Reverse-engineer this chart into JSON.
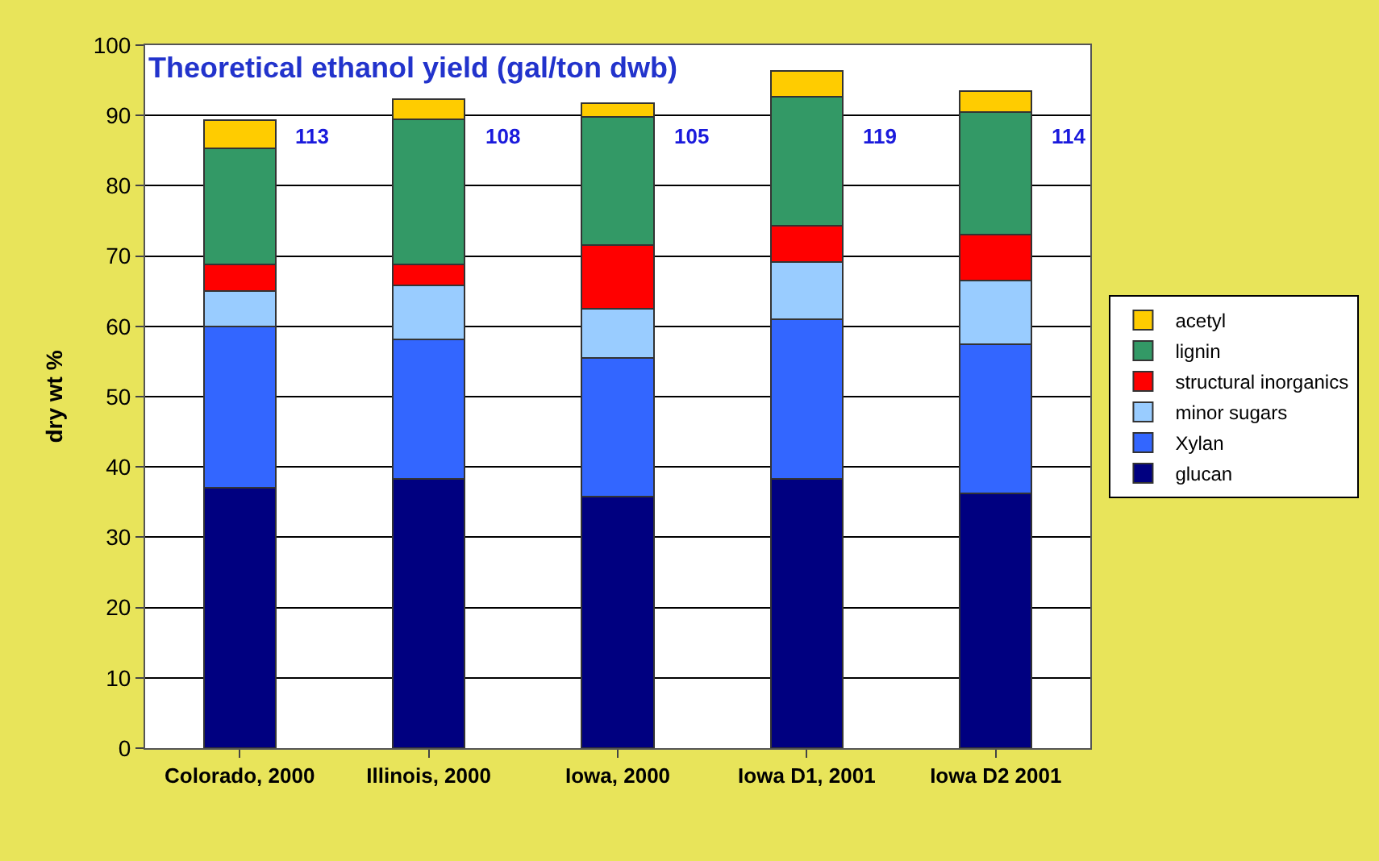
{
  "chart_data": {
    "type": "bar",
    "stacked": true,
    "ylabel": "dry wt %",
    "annotations": [
      {
        "text": "Theoretical ethanol yield (gal/ton dwb)"
      },
      "113",
      "108",
      "105",
      "119",
      "114"
    ],
    "categories": [
      "Colorado, 2000",
      "Illinois, 2000",
      "Iowa, 2000",
      "Iowa D1, 2001",
      "Iowa D2 2001"
    ],
    "series": [
      {
        "name": "glucan",
        "color": "#000080",
        "values": [
          37,
          38.3,
          35.8,
          38.3,
          36.2
        ]
      },
      {
        "name": "Xylan",
        "color": "#3366ff",
        "values": [
          23,
          19.8,
          19.7,
          22.7,
          21.3
        ]
      },
      {
        "name": "minor sugars",
        "color": "#99ccff",
        "values": [
          5,
          7.7,
          7,
          8.1,
          9
        ]
      },
      {
        "name": "structural inorganics",
        "color": "#ff0000",
        "values": [
          3.8,
          3,
          9.1,
          5.2,
          6.6
        ]
      },
      {
        "name": "lignin",
        "color": "#339966",
        "values": [
          16.5,
          20.7,
          18.2,
          18.4,
          17.4
        ]
      },
      {
        "name": "acetyl",
        "color": "#ffcc00",
        "values": [
          4,
          2.8,
          1.9,
          3.6,
          3
        ]
      }
    ],
    "ylim": [
      0,
      100
    ],
    "yticks": [
      0,
      10,
      20,
      30,
      40,
      50,
      60,
      70,
      80,
      90,
      100
    ],
    "grid": "y",
    "legend": "right"
  }
}
